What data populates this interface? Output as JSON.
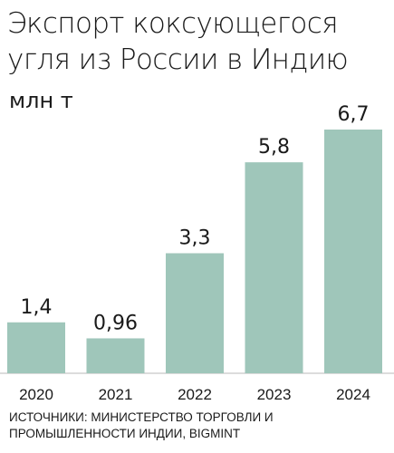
{
  "title": "Экспорт коксующегося угля из России в Индию",
  "unit_label": "млн т",
  "source": "ИСТОЧНИКИ: МИНИСТЕРСТВО ТОРГОВЛИ И ПРОМЫШЛЕННОСТИ ИНДИИ, BIGMINT",
  "colors": {
    "bar": "#9fc6ba",
    "text": "#1a1a1a"
  },
  "chart_data": {
    "type": "bar",
    "title": "Экспорт коксующегося угля из России в Индию",
    "ylabel": "млн т",
    "xlabel": "",
    "categories": [
      "2020",
      "2021",
      "2022",
      "2023",
      "2024"
    ],
    "values": [
      1.4,
      0.96,
      3.3,
      5.8,
      6.7
    ],
    "value_labels": [
      "1,4",
      "0,96",
      "3,3",
      "5,8",
      "6,7"
    ],
    "ylim": [
      0,
      6.7
    ],
    "grid": false,
    "legend": "none"
  }
}
